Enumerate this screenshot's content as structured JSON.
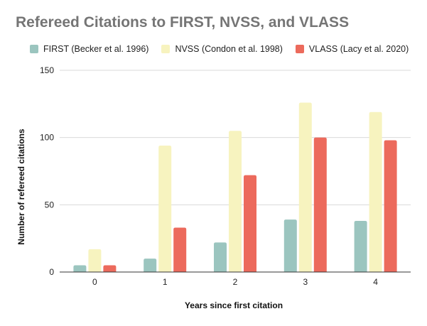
{
  "chart_data": {
    "type": "bar",
    "title": "Refereed Citations to FIRST, NVSS, and VLASS",
    "xlabel": "Years since first citation",
    "ylabel": "Number of refereed citations",
    "categories": [
      "0",
      "1",
      "2",
      "3",
      "4"
    ],
    "ylim": [
      0,
      150
    ],
    "yticks": [
      "0",
      "50",
      "100",
      "150"
    ],
    "grid": true,
    "legend_position": "top",
    "series": [
      {
        "name": "FIRST (Becker et al. 1996)",
        "color": "#9bc5bf",
        "values": [
          5,
          10,
          22,
          39,
          38
        ]
      },
      {
        "name": "NVSS (Condon et al. 1998)",
        "color": "#f7f3bf",
        "values": [
          17,
          94,
          105,
          126,
          119
        ]
      },
      {
        "name": "VLASS (Lacy et al. 2020)",
        "color": "#ec6a5c",
        "values": [
          5,
          33,
          72,
          100,
          98
        ]
      }
    ]
  }
}
